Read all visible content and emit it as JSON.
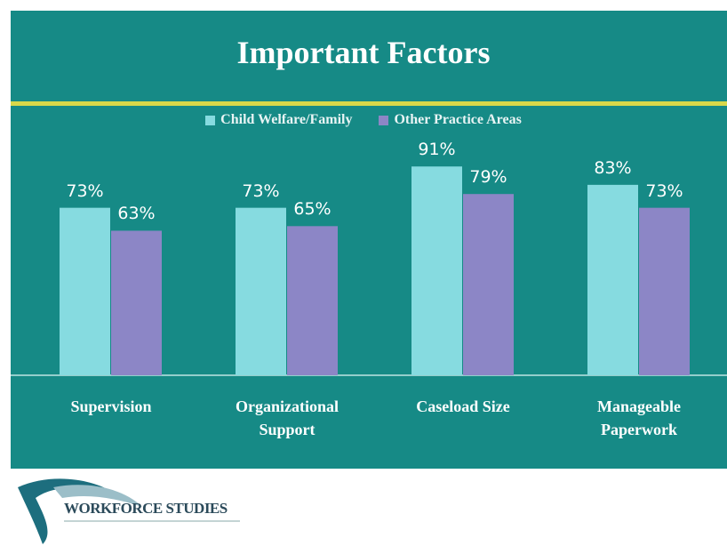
{
  "chart_data": {
    "type": "bar",
    "title": "Important Factors",
    "categories": [
      "Supervision",
      "Organizational Support",
      "Caseload Size",
      "Manageable Paperwork"
    ],
    "series": [
      {
        "name": "Child Welfare/Family",
        "color": "#86dbe0",
        "values": [
          73,
          73,
          91,
          83
        ],
        "value_labels": [
          "73%",
          "73%",
          "91%",
          "83%"
        ]
      },
      {
        "name": "Other Practice Areas",
        "color": "#8c86c6",
        "values": [
          63,
          65,
          79,
          73
        ],
        "value_labels": [
          "63%",
          "65%",
          "79%",
          "73%"
        ]
      }
    ],
    "ylim": [
      0,
      100
    ],
    "legend": "top"
  },
  "logo": {
    "text": "WORKFORCE STUDIES"
  }
}
